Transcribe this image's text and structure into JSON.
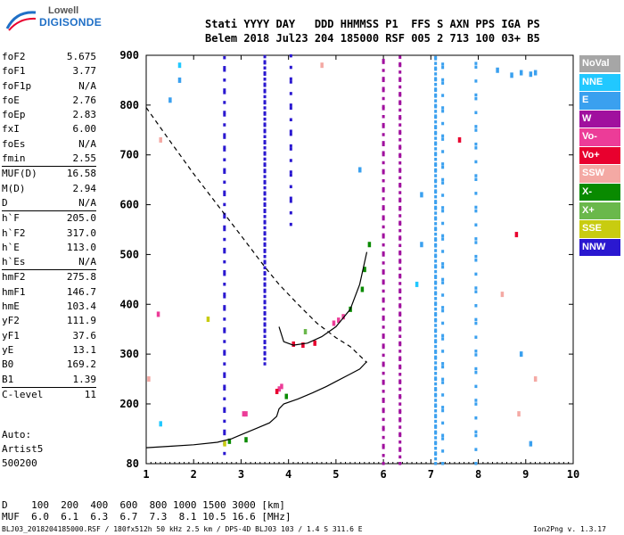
{
  "logo": {
    "line1": "Lowell",
    "line2": "DIGISONDE"
  },
  "header": {
    "row1": "Stati YYYY DAY   DDD HHMMSS P1  FFS S AXN PPS IGA PS",
    "row2": "Belem 2018 Jul23 204 185000 RSF 005 2 713 100 03+ B5"
  },
  "params": [
    {
      "label": "foF2",
      "value": "5.675"
    },
    {
      "label": "foF1",
      "value": "3.77"
    },
    {
      "label": "foF1p",
      "value": "N/A"
    },
    {
      "label": "foE",
      "value": "2.76"
    },
    {
      "label": "foEp",
      "value": "2.83"
    },
    {
      "label": "fxI",
      "value": "6.00"
    },
    {
      "label": "foEs",
      "value": "N/A"
    },
    {
      "label": "fmin",
      "value": "2.55"
    },
    {
      "label": "MUF(D)",
      "value": "16.58"
    },
    {
      "label": "M(D)",
      "value": "2.94"
    },
    {
      "label": "D",
      "value": "N/A"
    },
    {
      "label": "h`F",
      "value": "205.0"
    },
    {
      "label": "h`F2",
      "value": "317.0"
    },
    {
      "label": "h`E",
      "value": "113.0"
    },
    {
      "label": "h`Es",
      "value": "N/A"
    },
    {
      "label": "hmF2",
      "value": "275.8"
    },
    {
      "label": "hmF1",
      "value": "146.7"
    },
    {
      "label": "hmE",
      "value": "103.4"
    },
    {
      "label": "yF2",
      "value": "111.9"
    },
    {
      "label": "yF1",
      "value": "37.6"
    },
    {
      "label": "yE",
      "value": "13.1"
    },
    {
      "label": "B0",
      "value": "169.2"
    },
    {
      "label": "B1",
      "value": "1.39"
    },
    {
      "label": "C-level",
      "value": "11"
    }
  ],
  "auto": {
    "line1": "Auto:",
    "line2": "Artist5",
    "line3": "500200"
  },
  "legend": [
    {
      "label": "NoVal",
      "color": "#a6a6a6"
    },
    {
      "label": "NNE",
      "color": "#21c8ff"
    },
    {
      "label": "E",
      "color": "#3aa0ef"
    },
    {
      "label": "W",
      "color": "#a0109e"
    },
    {
      "label": "Vo-",
      "color": "#ec3c98"
    },
    {
      "label": "Vo+",
      "color": "#e8002e"
    },
    {
      "label": "SSW",
      "color": "#f4a9a4"
    },
    {
      "label": "X-",
      "color": "#098a00"
    },
    {
      "label": "X+",
      "color": "#6ab84b"
    },
    {
      "label": "SSE",
      "color": "#c8cc10"
    },
    {
      "label": "NNW",
      "color": "#2a18d0"
    }
  ],
  "footer": {
    "d_row": "D    100  200  400  600  800 1000 1500 3000 [km]",
    "muf_row": "MUF  6.0  6.1  6.3  6.7  7.3  8.1 10.5 16.6 [MHz]",
    "file_info": "BLJ03_2018204185000.RSF / 180fx512h 50 kHz 2.5 km / DPS-4D BLJ03 103 / 1.4 S 311.6 E",
    "version": "Ion2Png v. 1.3.17"
  },
  "chart_data": {
    "type": "scatter",
    "x_ticks": [
      "1",
      "2",
      "3",
      "4",
      "5",
      "6",
      "7",
      "8",
      "9",
      "10"
    ],
    "y_ticks": [
      "80",
      "200",
      "300",
      "400",
      "500",
      "600",
      "700",
      "800",
      "900"
    ],
    "xlim": [
      1,
      10
    ],
    "ylim": [
      80,
      900
    ],
    "xunit": "MHz",
    "yunit": "km",
    "trace_profile": [
      [
        1,
        112
      ],
      [
        1.5,
        115
      ],
      [
        2,
        118
      ],
      [
        2.5,
        123
      ],
      [
        2.8,
        130
      ],
      [
        3,
        138
      ],
      [
        3.3,
        150
      ],
      [
        3.6,
        162
      ],
      [
        3.75,
        175
      ],
      [
        3.8,
        190
      ],
      [
        3.9,
        200
      ],
      [
        4.2,
        210
      ],
      [
        4.5,
        222
      ],
      [
        4.8,
        235
      ],
      [
        5.0,
        245
      ],
      [
        5.3,
        260
      ],
      [
        5.5,
        270
      ],
      [
        5.65,
        285
      ]
    ],
    "trace_muf": [
      [
        1,
        795
      ],
      [
        1.5,
        728
      ],
      [
        2,
        662
      ],
      [
        2.5,
        600
      ],
      [
        3,
        538
      ],
      [
        3.5,
        475
      ],
      [
        3.8,
        440
      ],
      [
        4.2,
        400
      ],
      [
        4.6,
        362
      ],
      [
        5.0,
        333
      ],
      [
        5.3,
        315
      ],
      [
        5.5,
        297
      ],
      [
        5.65,
        283
      ]
    ],
    "trace_f2": [
      [
        3.8,
        355
      ],
      [
        3.9,
        325
      ],
      [
        4.1,
        318
      ],
      [
        4.4,
        322
      ],
      [
        4.7,
        335
      ],
      [
        5.0,
        355
      ],
      [
        5.3,
        390
      ],
      [
        5.5,
        440
      ],
      [
        5.65,
        505
      ]
    ],
    "echo_columns": [
      {
        "x": 2.65,
        "y0": 100,
        "y1": 900,
        "color": "#2a18d0",
        "n": 55
      },
      {
        "x": 3.5,
        "y0": 280,
        "y1": 900,
        "color": "#2a18d0",
        "n": 85
      },
      {
        "x": 4.05,
        "y0": 560,
        "y1": 900,
        "color": "#2a18d0",
        "n": 20
      },
      {
        "x": 6.0,
        "y0": 80,
        "y1": 900,
        "color": "#a0109e",
        "n": 70
      },
      {
        "x": 6.35,
        "y0": 80,
        "y1": 900,
        "color": "#a0109e",
        "n": 85
      },
      {
        "x": 7.1,
        "y0": 80,
        "y1": 900,
        "color": "#3aa0ef",
        "n": 120
      },
      {
        "x": 7.25,
        "y0": 80,
        "y1": 900,
        "color": "#3aa0ef",
        "n": 45
      },
      {
        "x": 7.95,
        "y0": 80,
        "y1": 900,
        "color": "#3aa0ef",
        "n": 40
      }
    ],
    "echo_points": [
      {
        "x": 3.85,
        "y": 235,
        "color": "#ec3c98"
      },
      {
        "x": 3.8,
        "y": 230,
        "color": "#ec3c98"
      },
      {
        "x": 3.75,
        "y": 225,
        "color": "#e8002e"
      },
      {
        "x": 3.95,
        "y": 215,
        "color": "#098a00"
      },
      {
        "x": 3.05,
        "y": 180,
        "color": "#ec3c98"
      },
      {
        "x": 3.1,
        "y": 180,
        "color": "#ec3c98"
      },
      {
        "x": 2.65,
        "y": 120,
        "color": "#c8cc10"
      },
      {
        "x": 2.75,
        "y": 125,
        "color": "#098a00"
      },
      {
        "x": 3.1,
        "y": 128,
        "color": "#098a00"
      },
      {
        "x": 4.35,
        "y": 345,
        "color": "#6ab84b"
      },
      {
        "x": 4.95,
        "y": 362,
        "color": "#ec3c98"
      },
      {
        "x": 5.05,
        "y": 368,
        "color": "#ec3c98"
      },
      {
        "x": 5.15,
        "y": 375,
        "color": "#ec3c98"
      },
      {
        "x": 5.3,
        "y": 390,
        "color": "#098a00"
      },
      {
        "x": 5.55,
        "y": 430,
        "color": "#098a00"
      },
      {
        "x": 5.6,
        "y": 470,
        "color": "#098a00"
      },
      {
        "x": 5.7,
        "y": 520,
        "color": "#098a00"
      },
      {
        "x": 4.1,
        "y": 320,
        "color": "#e8002e"
      },
      {
        "x": 4.3,
        "y": 318,
        "color": "#e8002e"
      },
      {
        "x": 4.55,
        "y": 322,
        "color": "#e8002e"
      },
      {
        "x": 1.3,
        "y": 160,
        "color": "#21c8ff"
      },
      {
        "x": 1.25,
        "y": 380,
        "color": "#ec3c98"
      },
      {
        "x": 1.7,
        "y": 880,
        "color": "#21c8ff"
      },
      {
        "x": 1.7,
        "y": 850,
        "color": "#3aa0ef"
      },
      {
        "x": 8.7,
        "y": 860,
        "color": "#3aa0ef"
      },
      {
        "x": 8.9,
        "y": 865,
        "color": "#3aa0ef"
      },
      {
        "x": 9.1,
        "y": 862,
        "color": "#3aa0ef"
      },
      {
        "x": 9.2,
        "y": 865,
        "color": "#3aa0ef"
      },
      {
        "x": 8.4,
        "y": 870,
        "color": "#3aa0ef"
      },
      {
        "x": 8.8,
        "y": 540,
        "color": "#e8002e"
      },
      {
        "x": 9.1,
        "y": 120,
        "color": "#3aa0ef"
      },
      {
        "x": 9.2,
        "y": 250,
        "color": "#f4a9a4"
      },
      {
        "x": 8.5,
        "y": 420,
        "color": "#f4a9a4"
      },
      {
        "x": 1.05,
        "y": 250,
        "color": "#f4a9a4"
      },
      {
        "x": 2.3,
        "y": 370,
        "color": "#c8cc10"
      },
      {
        "x": 6.8,
        "y": 620,
        "color": "#3aa0ef"
      },
      {
        "x": 6.8,
        "y": 520,
        "color": "#3aa0ef"
      },
      {
        "x": 7.6,
        "y": 730,
        "color": "#e8002e"
      },
      {
        "x": 8.85,
        "y": 180,
        "color": "#f4a9a4"
      },
      {
        "x": 5.5,
        "y": 670,
        "color": "#3aa0ef"
      },
      {
        "x": 4.7,
        "y": 880,
        "color": "#f4a9a4"
      },
      {
        "x": 1.3,
        "y": 730,
        "color": "#f4a9a4"
      },
      {
        "x": 1.5,
        "y": 810,
        "color": "#3aa0ef"
      },
      {
        "x": 6.7,
        "y": 440,
        "color": "#21c8ff"
      },
      {
        "x": 8.9,
        "y": 300,
        "color": "#3aa0ef"
      }
    ]
  }
}
